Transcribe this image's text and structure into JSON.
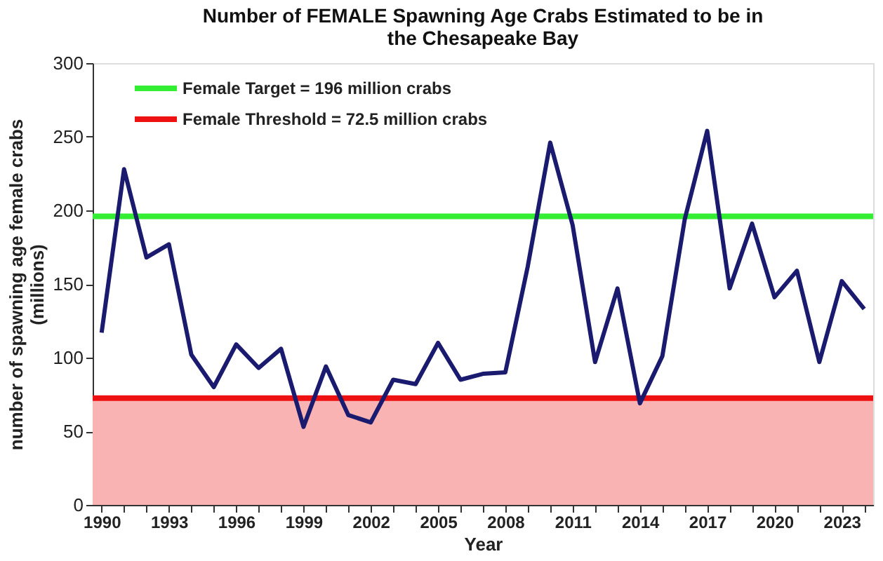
{
  "chart_data": {
    "type": "line",
    "title": "Number of FEMALE  Spawning Age Crabs Estimated to be in\nthe Chesapeake Bay",
    "xlabel": "Year",
    "ylabel": "number of spawning age female crabs\n(millions)",
    "x": [
      1990,
      1991,
      1992,
      1993,
      1994,
      1995,
      1996,
      1997,
      1998,
      1999,
      2000,
      2001,
      2002,
      2003,
      2004,
      2005,
      2006,
      2007,
      2008,
      2009,
      2010,
      2011,
      2012,
      2013,
      2014,
      2015,
      2016,
      2017,
      2018,
      2019,
      2020,
      2021,
      2022,
      2023,
      2024
    ],
    "series": [
      {
        "color": "#1a1a6e",
        "values": [
          117,
          228,
          168,
          177,
          102,
          80,
          109,
          93,
          106,
          53,
          94,
          61,
          56,
          85,
          82,
          110,
          85,
          89,
          90,
          162,
          246,
          190,
          97,
          147,
          69,
          101,
          194,
          254,
          147,
          191,
          141,
          159,
          97,
          152,
          133
        ]
      }
    ],
    "xlim": [
      1989.6,
      2024.4
    ],
    "xticks": [
      1990,
      {
        "value": 1991,
        "label": null
      },
      {
        "value": 1992,
        "label": null
      },
      1993,
      {
        "value": 1994,
        "label": null
      },
      {
        "value": 1995,
        "label": null
      },
      1996,
      {
        "value": 1997,
        "label": null
      },
      {
        "value": 1998,
        "label": null
      },
      1999,
      {
        "value": 2000,
        "label": null
      },
      {
        "value": 2001,
        "label": null
      },
      2002,
      {
        "value": 2003,
        "label": null
      },
      {
        "value": 2004,
        "label": null
      },
      2005,
      {
        "value": 2006,
        "label": null
      },
      {
        "value": 2007,
        "label": null
      },
      2008,
      {
        "value": 2009,
        "label": null
      },
      {
        "value": 2010,
        "label": null
      },
      2011,
      {
        "value": 2012,
        "label": null
      },
      {
        "value": 2013,
        "label": null
      },
      2014,
      {
        "value": 2015,
        "label": null
      },
      {
        "value": 2016,
        "label": null
      },
      2017,
      {
        "value": 2018,
        "label": null
      },
      {
        "value": 2019,
        "label": null
      },
      2020,
      {
        "value": 2021,
        "label": null
      },
      {
        "value": 2022,
        "label": null
      },
      2023,
      {
        "value": 2024,
        "label": null
      }
    ],
    "ylim": [
      0,
      300
    ],
    "yticks": [
      0,
      50,
      100,
      150,
      200,
      250,
      300
    ],
    "ref_lines": [
      {
        "axis": "y",
        "value": 196,
        "label": "Female Target = 196 million crabs",
        "color": "#33ee33"
      },
      {
        "axis": "y",
        "value": 72.5,
        "label": "Female Threshold = 72.5 million crabs",
        "color": "#ee1111"
      }
    ],
    "bands": [
      {
        "axis": "y",
        "from": 0,
        "to": 72.5,
        "color": "#f9b3b3"
      }
    ],
    "legend": "top left",
    "grid": false,
    "marker": "none",
    "line_style": "solid"
  }
}
